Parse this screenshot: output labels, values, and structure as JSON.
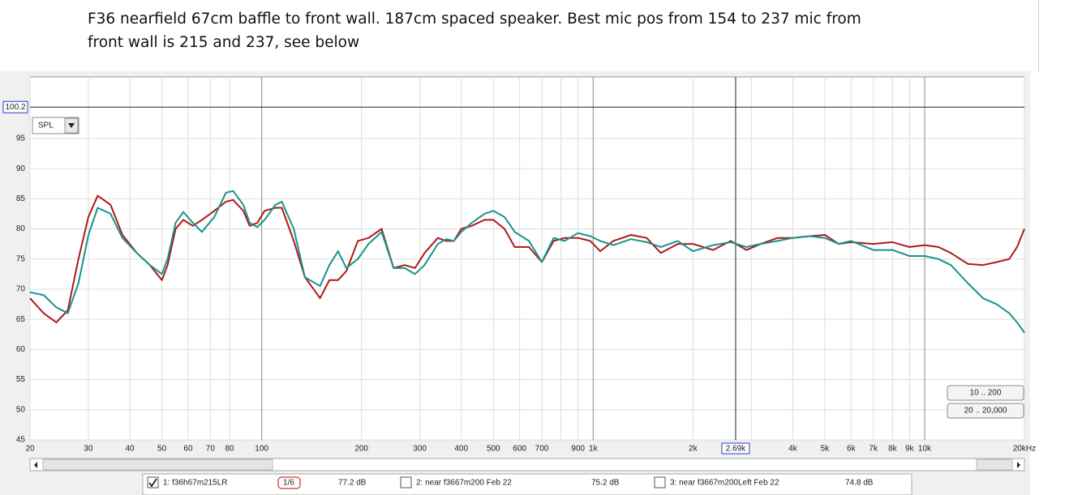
{
  "document": {
    "lines": [
      "F36 nearfield 67cm baffle to front wall. 187cm spaced speaker. Best mic pos from 154 to 237 mic from",
      "front wall is 215 and 237, see below"
    ]
  },
  "chart_data": {
    "type": "line",
    "xlog": true,
    "grid": true,
    "xlim": [
      20,
      20000
    ],
    "ylim": [
      45,
      105.2
    ],
    "xticks": [
      20,
      30,
      40,
      50,
      60,
      70,
      80,
      {
        "value": 100,
        "label": "100"
      },
      200,
      300,
      400,
      500,
      600,
      700,
      {
        "value": 800,
        "label": null
      },
      900,
      {
        "value": 1000,
        "label": "1k"
      },
      {
        "value": 2000,
        "label": "2k"
      },
      {
        "value": 3000,
        "label": null
      },
      {
        "value": 4000,
        "label": "4k"
      },
      {
        "value": 5000,
        "label": "5k"
      },
      {
        "value": 6000,
        "label": "6k"
      },
      {
        "value": 7000,
        "label": "7k"
      },
      {
        "value": 8000,
        "label": "8k"
      },
      {
        "value": 9000,
        "label": "9k"
      },
      {
        "value": 10000,
        "label": "10k"
      },
      {
        "value": 20000,
        "label": "20kHz"
      }
    ],
    "yticks": [
      45,
      50,
      55,
      60,
      65,
      70,
      75,
      80,
      85,
      90,
      95
    ],
    "cursor": {
      "x": {
        "value": 2690,
        "label": "2.69k"
      },
      "y": 100.2
    },
    "x": [
      20,
      22,
      24,
      26,
      28,
      30,
      32,
      35,
      38,
      42,
      46,
      50,
      52,
      55,
      58,
      62,
      66,
      72,
      78,
      82,
      88,
      92,
      97,
      102,
      110,
      115,
      125,
      135,
      150,
      160,
      170,
      180,
      195,
      210,
      230,
      250,
      270,
      290,
      310,
      340,
      360,
      380,
      400,
      430,
      470,
      500,
      540,
      580,
      640,
      700,
      760,
      820,
      900,
      980,
      1050,
      1150,
      1300,
      1450,
      1600,
      1800,
      2000,
      2300,
      2600,
      2900,
      3200,
      3600,
      4000,
      4500,
      5000,
      5500,
      6000,
      7000,
      8000,
      9000,
      10000,
      11000,
      12000,
      13500,
      15000,
      16500,
      18000,
      19000,
      20000
    ],
    "series": [
      {
        "name": "1: f36h67m215LR",
        "color": "#b01818",
        "values": [
          68.5,
          66,
          64.5,
          66.5,
          75,
          82,
          85.5,
          84,
          79,
          76,
          74,
          71.5,
          74,
          80,
          81.5,
          80.5,
          81.5,
          83,
          84.5,
          84.8,
          83,
          80.5,
          81,
          83,
          83.5,
          83.5,
          78,
          72,
          68.5,
          71.5,
          71.5,
          73,
          78,
          78.5,
          80,
          73.5,
          74,
          73.5,
          76,
          78.5,
          78,
          78,
          80,
          80.5,
          81.5,
          81.5,
          80,
          77,
          77,
          74.5,
          78,
          78.5,
          78.5,
          78,
          76.3,
          78,
          79,
          78.5,
          76,
          77.5,
          77.5,
          76.5,
          78,
          76.5,
          77.5,
          78.5,
          78.5,
          78.8,
          79,
          77.5,
          77.8,
          77.5,
          77.8,
          77,
          77.3,
          77,
          76,
          74.2,
          74,
          74.5,
          75,
          77,
          80
        ]
      },
      {
        "color": "#17938f",
        "values": [
          69.5,
          69,
          67,
          66,
          71,
          79,
          83.5,
          82.5,
          78.5,
          76,
          74,
          72.5,
          75,
          81,
          82.8,
          81,
          79.5,
          82,
          86,
          86.3,
          84,
          81,
          80.3,
          81.5,
          84,
          84.5,
          80,
          72,
          70.5,
          74,
          76.3,
          73.5,
          75,
          77.5,
          79.5,
          73.5,
          73.5,
          72.5,
          74,
          77.5,
          78.3,
          78,
          79.5,
          81,
          82.5,
          83,
          82,
          79.5,
          78,
          74.5,
          78.5,
          78,
          79.3,
          78.8,
          78,
          77.3,
          78.3,
          77.8,
          77,
          78,
          76.3,
          77.3,
          77.8,
          77,
          77.5,
          78,
          78.5,
          78.8,
          78.5,
          77.5,
          78,
          76.5,
          76.5,
          75.5,
          75.5,
          75,
          74,
          71,
          68.5,
          67.5,
          66,
          64.5,
          62.8
        ]
      }
    ]
  },
  "ui": {
    "selector": "SPL",
    "buttons": [
      "10 .. 200",
      "20 .. 20,000"
    ],
    "legend": [
      {
        "label": "1: f36h67m215LR",
        "smoothing": "1/6",
        "level": "77.2 dB",
        "color": "#c00000",
        "checked": true
      },
      {
        "label": "2: near f3667m200 Feb 22",
        "level": "75.2 dB",
        "color": "#1a7a1a",
        "checked": false
      },
      {
        "label": "3: near f3667m200Left Feb 22",
        "level": "74.8 dB",
        "color": "#1f5fbf",
        "checked": false
      }
    ]
  }
}
